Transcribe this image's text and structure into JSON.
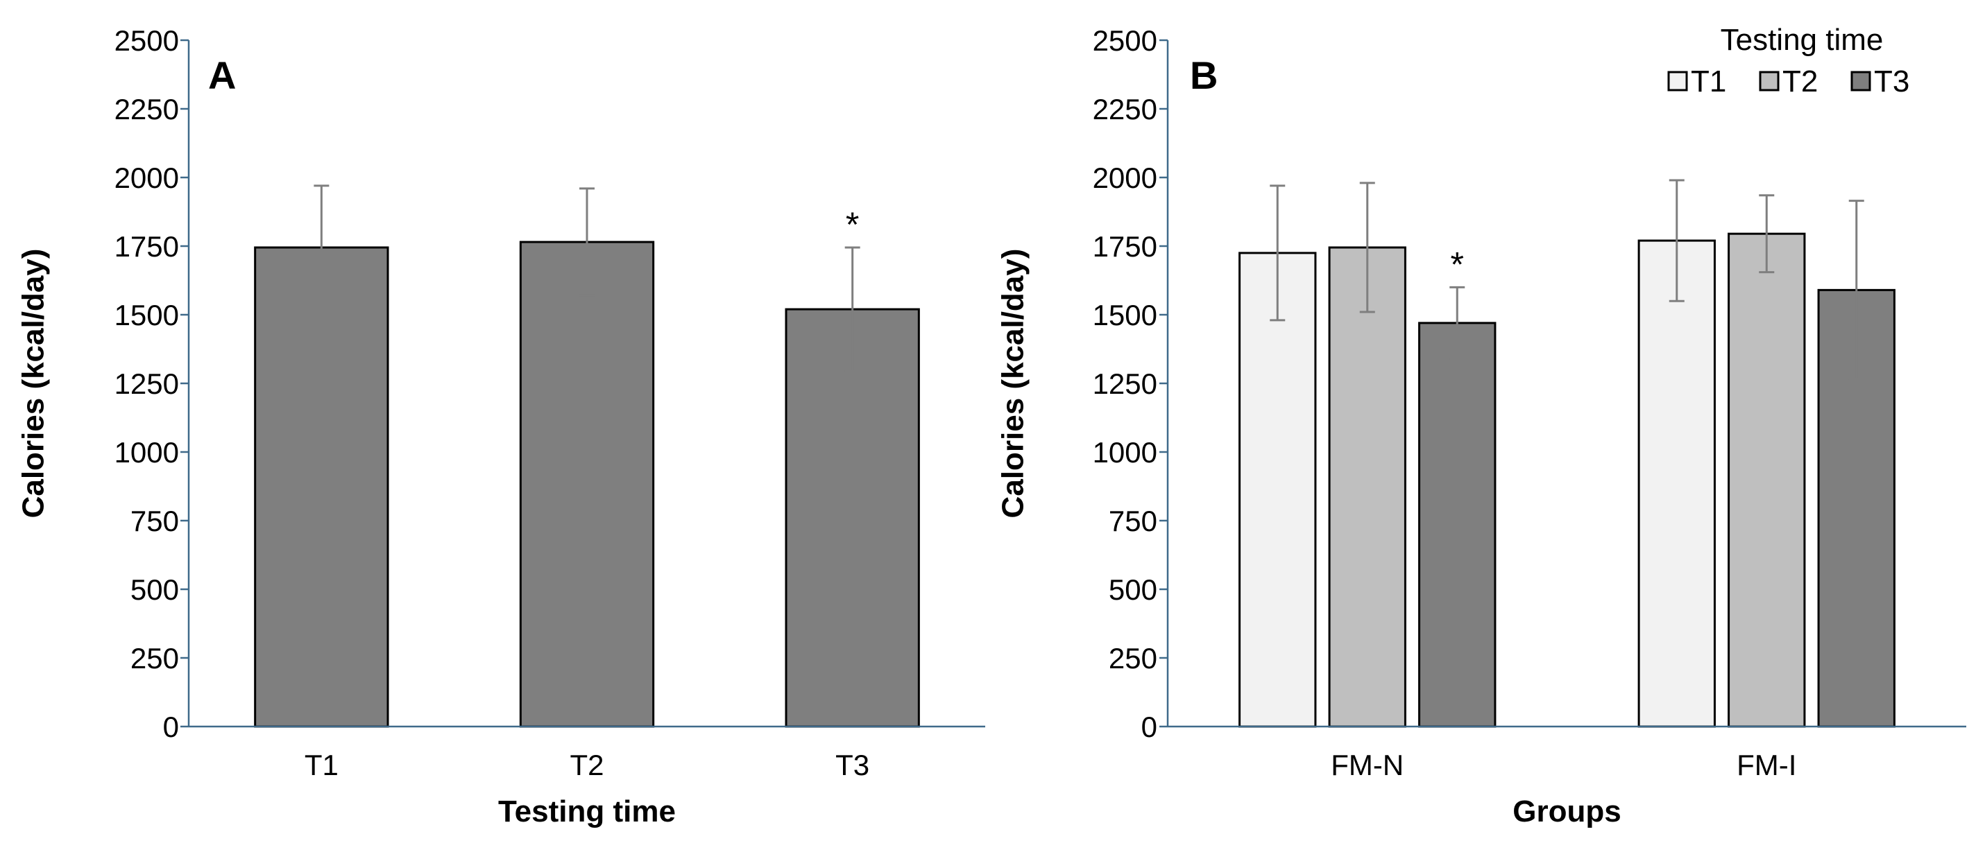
{
  "chart_data": [
    {
      "type": "bar",
      "panel": "A",
      "ylabel": "Calories (kcal/day)",
      "xlabel": "Testing time",
      "ylim": [
        0,
        2500
      ],
      "yticks": [
        "0",
        "250",
        "500",
        "750",
        "1000",
        "1250",
        "1500",
        "1750",
        "2000",
        "2250",
        "2500"
      ],
      "categories": [
        "T1",
        "T2",
        "T3"
      ],
      "values": [
        1745,
        1765,
        1520
      ],
      "errors": [
        225,
        195,
        225
      ],
      "colors": [
        "#7f7f7f",
        "#7f7f7f",
        "#7f7f7f"
      ],
      "annotations": [
        "",
        "",
        "*"
      ]
    },
    {
      "type": "bar",
      "panel": "B",
      "ylabel": "Calories (kcal/day)",
      "xlabel": "Groups",
      "ylim": [
        0,
        2500
      ],
      "yticks": [
        "0",
        "250",
        "500",
        "750",
        "1000",
        "1250",
        "1500",
        "1750",
        "2000",
        "2250",
        "2500"
      ],
      "categories": [
        "FM-N",
        "FM-I"
      ],
      "legend_title": "Testing time",
      "legend_position": "top-right",
      "series": [
        {
          "name": "T1",
          "color": "#f2f2f2",
          "values": [
            1725,
            1770
          ],
          "errors": [
            245,
            220
          ],
          "annotations": [
            "",
            ""
          ]
        },
        {
          "name": "T2",
          "color": "#bfbfbf",
          "values": [
            1745,
            1795
          ],
          "errors": [
            235,
            140
          ],
          "annotations": [
            "",
            ""
          ]
        },
        {
          "name": "T3",
          "color": "#7f7f7f",
          "values": [
            1470,
            1590
          ],
          "errors": [
            130,
            325
          ],
          "annotations": [
            "*",
            ""
          ]
        }
      ]
    }
  ]
}
